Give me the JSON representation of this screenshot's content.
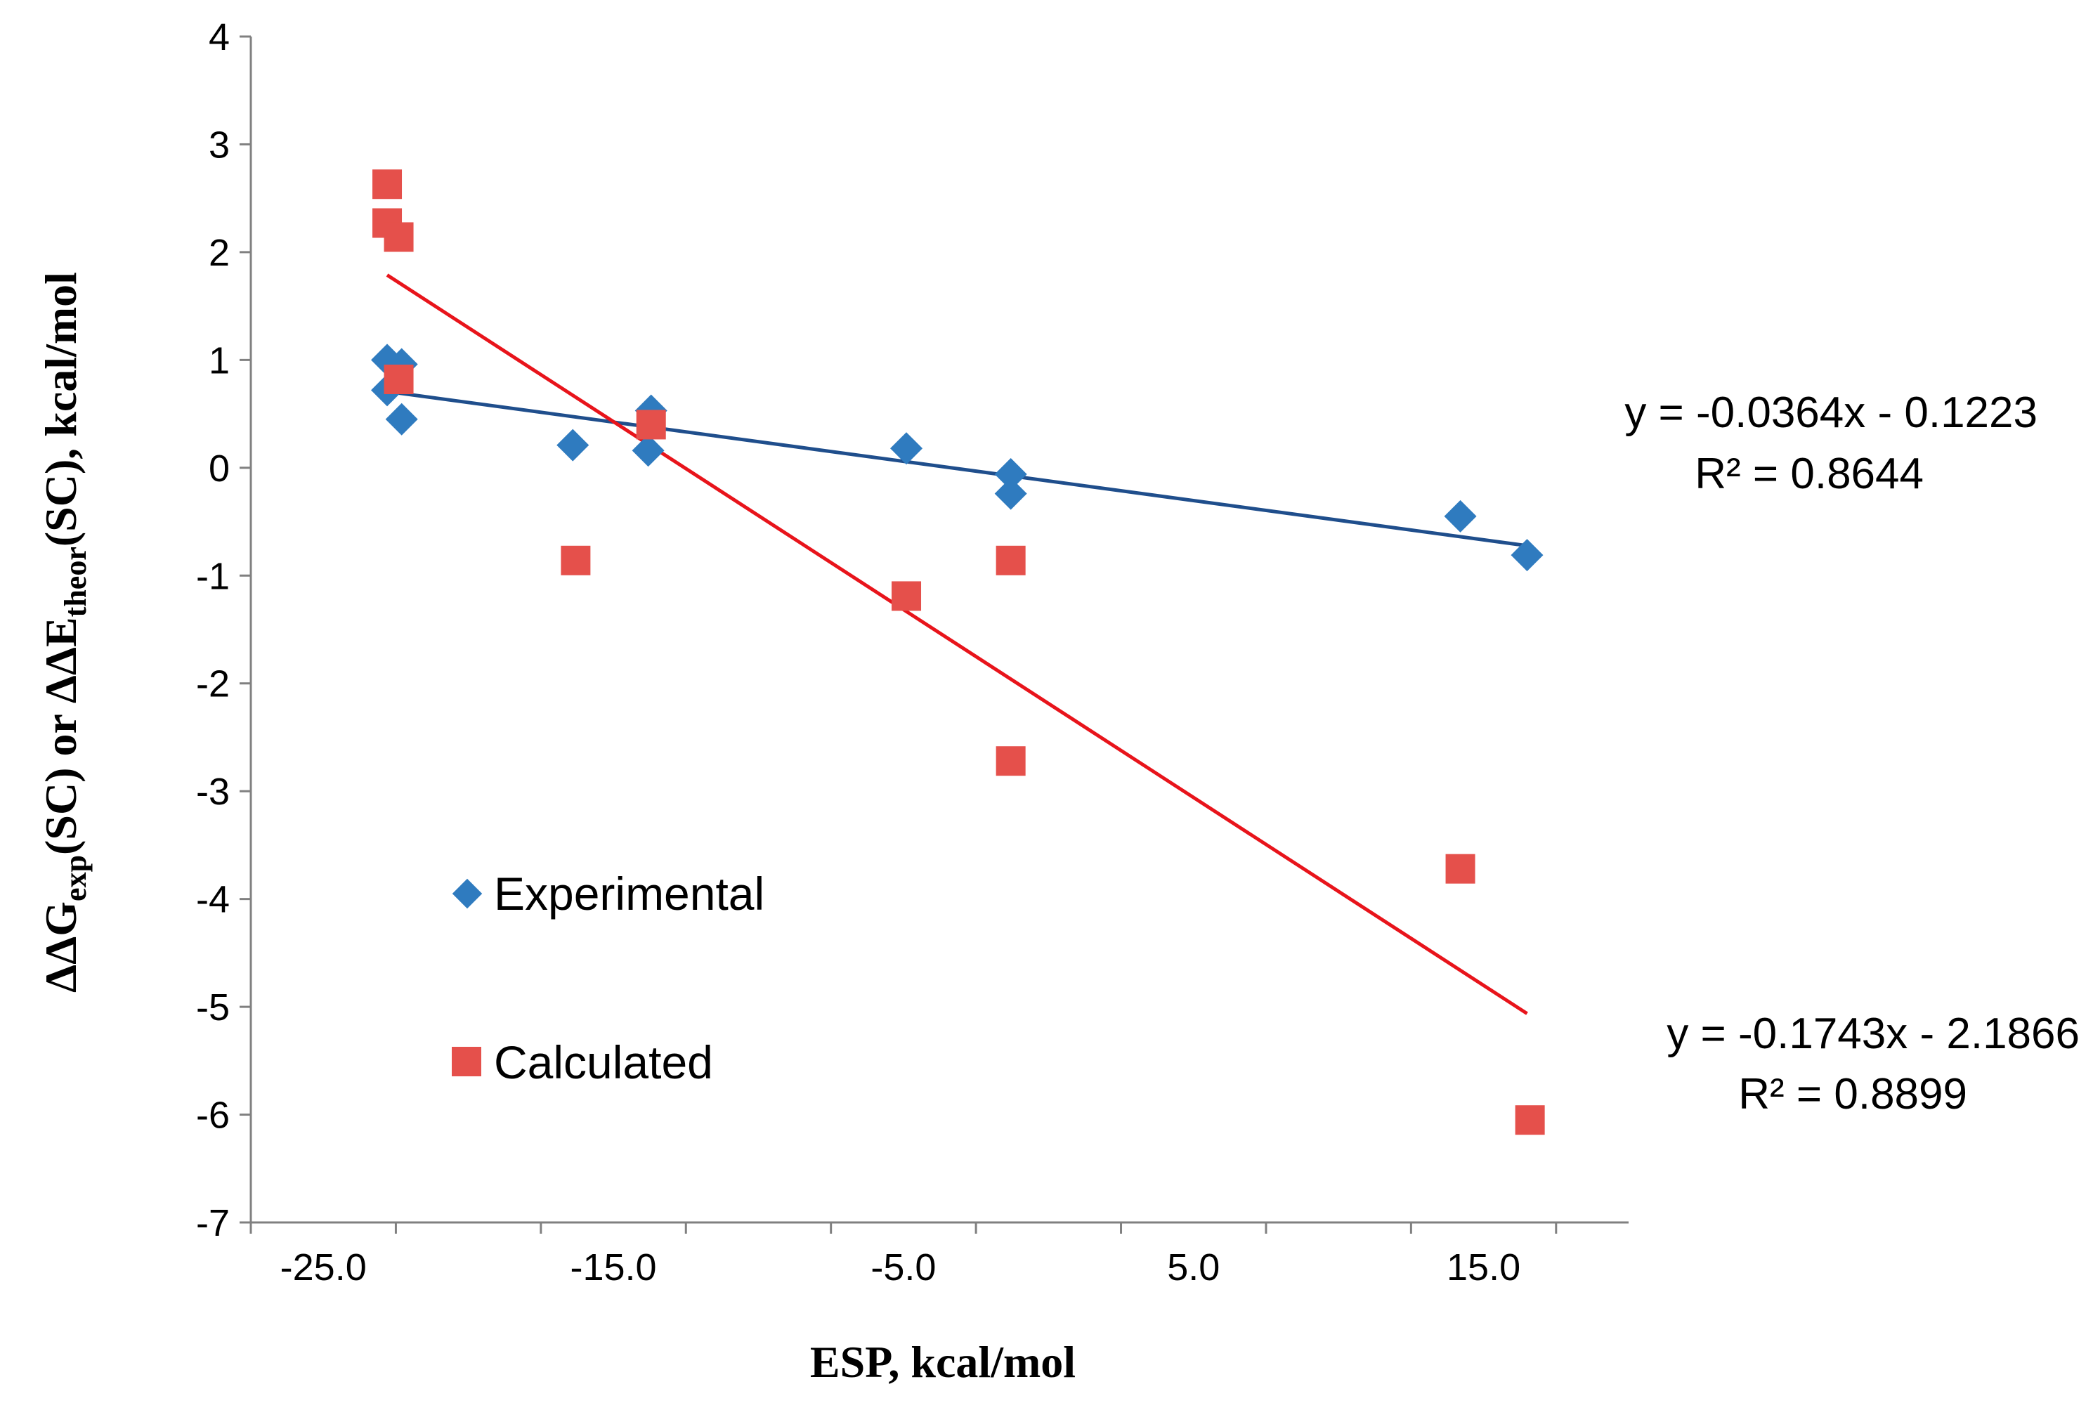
{
  "chart_data": {
    "type": "scatter",
    "title": "",
    "xlabel": "ESP, kcal/mol",
    "ylabel_parts": {
      "p1": "ΔΔG",
      "sub1": "exp",
      "p2": "(SC) or ΔΔE",
      "sub2": "theor",
      "p3": "(SC), kcal/mol"
    },
    "xlim": [
      -27.5,
      20
    ],
    "ylim": [
      -7,
      4
    ],
    "x_ticks": [
      -25,
      -15,
      -5,
      5,
      15
    ],
    "x_tick_labels": [
      "-25.0",
      "-15.0",
      "-5.0",
      "5.0",
      "15.0"
    ],
    "y_ticks": [
      4,
      3,
      2,
      1,
      0,
      -1,
      -2,
      -3,
      -4,
      -5,
      -6,
      -7
    ],
    "y_tick_labels": [
      "4",
      "3",
      "2",
      "1",
      "0",
      "-1",
      "-2",
      "-3",
      "-4",
      "-5",
      "-6",
      "-7"
    ],
    "grid": false,
    "series": [
      {
        "name": "Experimental",
        "marker": "diamond",
        "color": "#2f7bbf",
        "trend_color": "#1f4e8c",
        "x": [
          -22.8,
          -22.8,
          -22.3,
          -22.3,
          -16.4,
          -13.7,
          -13.8,
          -4.9,
          -1.3,
          -1.3,
          14.2,
          16.5
        ],
        "y": [
          1.0,
          0.72,
          0.96,
          0.45,
          0.21,
          0.53,
          0.16,
          0.18,
          -0.06,
          -0.24,
          -0.45,
          -0.81
        ],
        "trendline": {
          "slope": -0.0364,
          "intercept": -0.1223,
          "x_range": [
            -22.8,
            16.5
          ],
          "equation": "y = -0.0364x - 0.1223",
          "r2": "R² = 0.8644"
        }
      },
      {
        "name": "Calculated",
        "marker": "square",
        "color": "#e5504b",
        "trend_color": "#e8141b",
        "x": [
          -22.8,
          -22.8,
          -22.4,
          -22.4,
          -16.3,
          -13.7,
          -4.9,
          -1.3,
          -1.3,
          14.2,
          16.6
        ],
        "y": [
          2.63,
          2.27,
          2.14,
          0.82,
          -0.86,
          0.4,
          -1.19,
          -0.86,
          -2.72,
          -3.72,
          -6.05
        ],
        "trendline": {
          "slope": -0.1743,
          "intercept": -2.1866,
          "x_range": [
            -22.8,
            16.5
          ],
          "equation": "y = -0.1743x - 2.1866",
          "r2": "R² = 0.8899"
        }
      }
    ],
    "legend_position": "center-left"
  }
}
